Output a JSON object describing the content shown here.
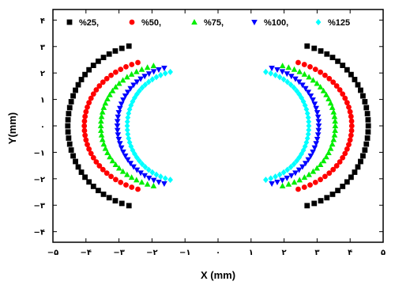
{
  "chart_data": {
    "type": "scatter",
    "xlabel": "X (mm)",
    "ylabel": "Y(mm)",
    "xlim": [
      -5,
      5
    ],
    "ylim": [
      -4.4,
      4.4
    ],
    "x_ticks": [
      -5,
      -4,
      -3,
      -2,
      -1,
      0,
      1,
      2,
      3,
      4,
      5
    ],
    "x_tick_labels": [
      "−۵",
      "−۴",
      "−۳",
      "−۲",
      "−۱",
      "۰",
      "۱",
      "۲",
      "۳",
      "۴",
      "۵"
    ],
    "y_ticks": [
      -4,
      -3,
      -2,
      -1,
      0,
      1,
      2,
      3,
      4
    ],
    "y_tick_labels": [
      "−۴",
      "−۳",
      "−۲",
      "−۱",
      "۰",
      "۱",
      "۲",
      "۳",
      "۴"
    ],
    "grid": false,
    "legend_position": "top",
    "series": [
      {
        "name": "%25,",
        "marker": "square",
        "color": "#000000",
        "ring": {
          "cx": 0,
          "R": 4.55,
          "xs": 1.25,
          "ry": 3.2,
          "gap": 0.34
        }
      },
      {
        "name": "%50,",
        "marker": "circle",
        "color": "#ff0000",
        "ring": {
          "cx": 0.95,
          "R": 4.05,
          "xs": 0.85,
          "ry": 2.6,
          "gap": 0.4
        }
      },
      {
        "name": "%75,",
        "marker": "triangle-up",
        "color": "#00ee00",
        "ring": {
          "cx": 0.85,
          "R": 3.55,
          "xs": 0.75,
          "ry": 2.4,
          "gap": 0.33
        }
      },
      {
        "name": "%100,",
        "marker": "triangle-down",
        "color": "#0000ff",
        "ring": {
          "cx": 0.9,
          "R": 3.05,
          "xs": 0.6,
          "ry": 2.3,
          "gap": 0.32
        }
      },
      {
        "name": "%125",
        "marker": "diamond",
        "color": "#00ffff",
        "ring": {
          "cx": 0.95,
          "R": 2.75,
          "xs": 0.5,
          "ry": 2.15,
          "gap": 0.32
        }
      }
    ]
  }
}
